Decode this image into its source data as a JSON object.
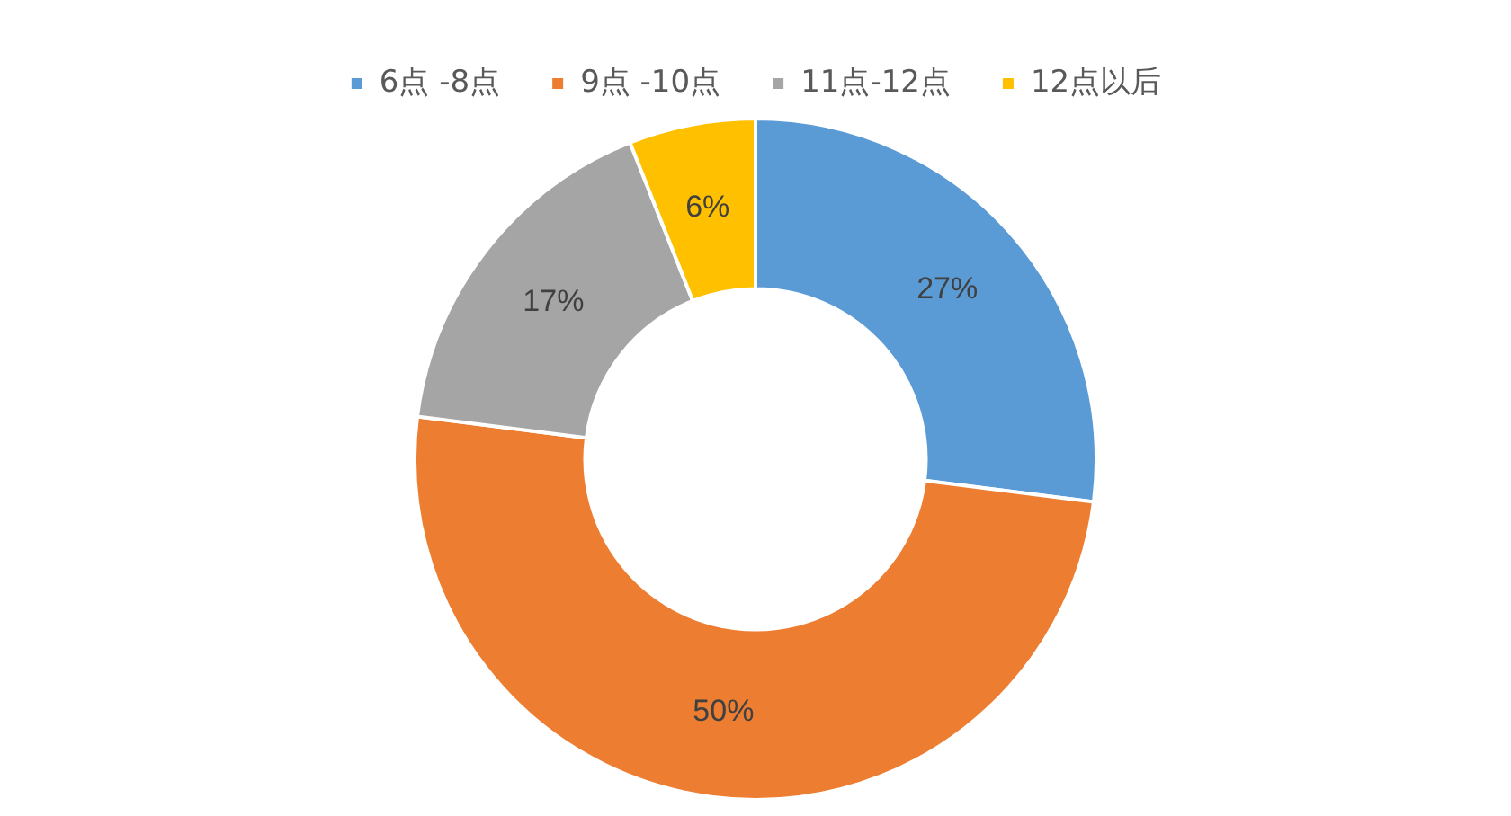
{
  "chart_data": {
    "type": "donut",
    "categories": [
      "6点 -8点",
      "9点 -10点",
      "11点-12点",
      "12点以后"
    ],
    "values": [
      27,
      50,
      17,
      6
    ],
    "colors": [
      "#5b9bd5",
      "#ed7d31",
      "#a5a5a5",
      "#ffc000"
    ],
    "value_labels": [
      "27%",
      "50%",
      "17%",
      "6%"
    ],
    "legend": "top"
  }
}
